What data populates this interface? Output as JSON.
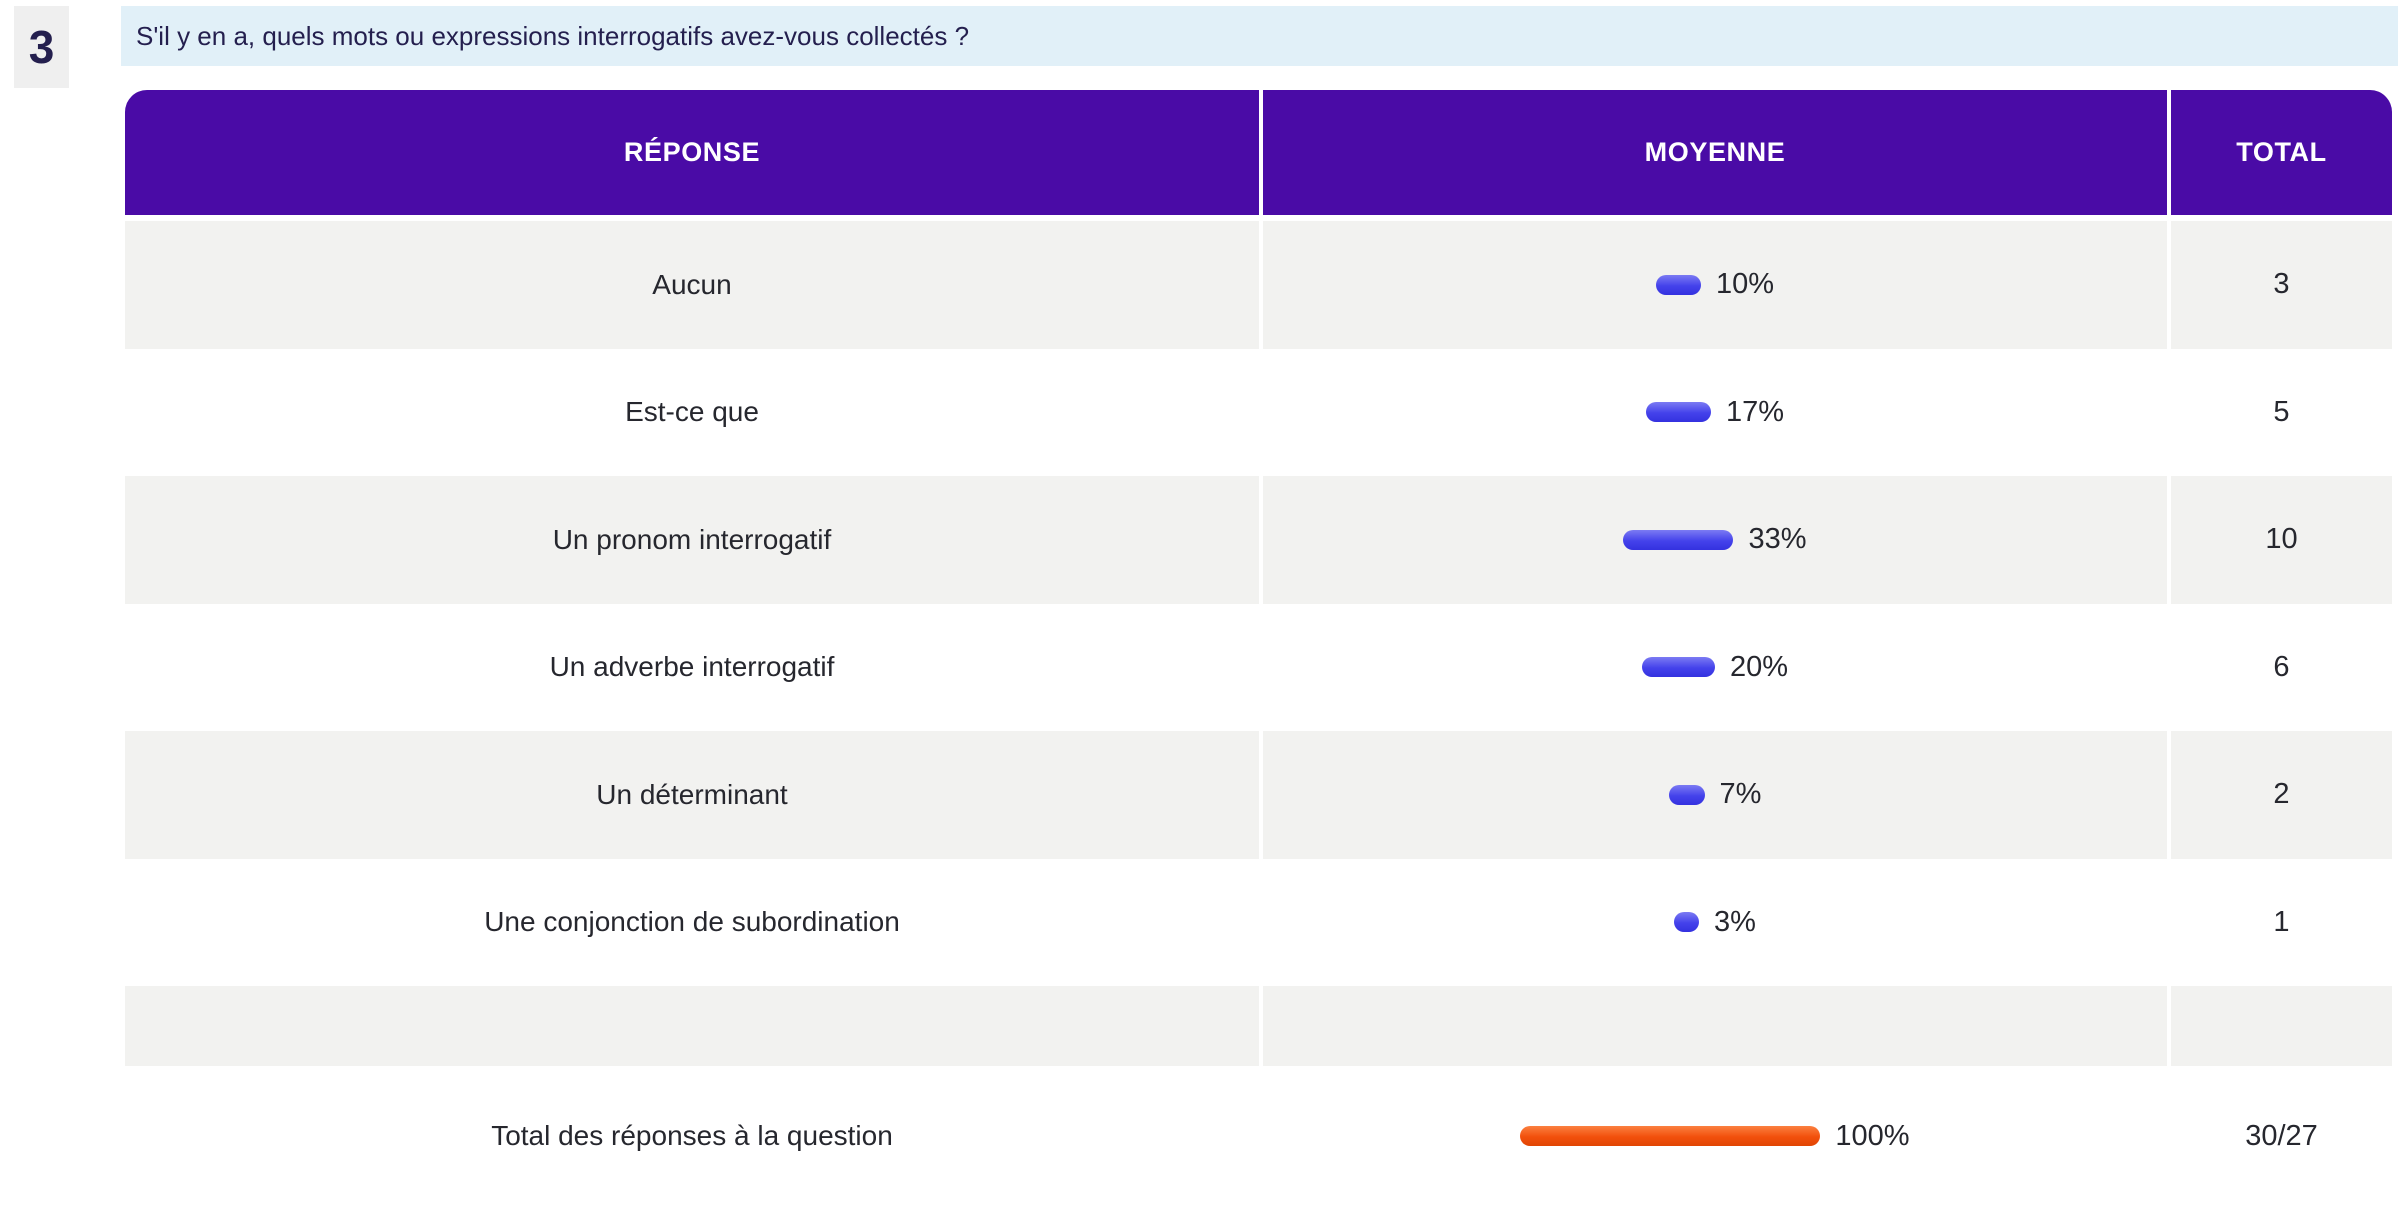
{
  "question": {
    "number": "3",
    "text": "S'il y en a, quels mots ou expressions interrogatifs avez-vous collectés ?"
  },
  "table": {
    "headers": [
      "RÉPONSE",
      "MOYENNE",
      "TOTAL"
    ],
    "rows": [
      {
        "label": "Aucun",
        "percent": 10,
        "percent_label": "10%",
        "total": "3"
      },
      {
        "label": "Est-ce que",
        "percent": 17,
        "percent_label": "17%",
        "total": "5"
      },
      {
        "label": "Un pronom interrogatif",
        "percent": 33,
        "percent_label": "33%",
        "total": "10"
      },
      {
        "label": "Un adverbe interrogatif",
        "percent": 20,
        "percent_label": "20%",
        "total": "6"
      },
      {
        "label": "Un déterminant",
        "percent": 7,
        "percent_label": "7%",
        "total": "2"
      },
      {
        "label": "Une conjonction de subordination",
        "percent": 3,
        "percent_label": "3%",
        "total": "1"
      },
      {
        "label": "",
        "percent": null,
        "percent_label": "",
        "total": "",
        "spacer": true
      },
      {
        "label": "Total des réponses à la question",
        "percent": 100,
        "percent_label": "100%",
        "total": "30/27",
        "is_total": true
      }
    ]
  },
  "colors": {
    "header_bg": "#4A0BA6",
    "banner_bg": "#E1F0F8",
    "badge_bg": "#EFEFEF",
    "row_alt_bg": "#F2F2F0",
    "dark_text": "#241F4E",
    "body_text": "#26272E",
    "bar_blue": "#4442EB",
    "bar_blue_light": "#7C7BF3",
    "bar_blue_dark": "#3431DF",
    "bar_orange": "#F2500C",
    "bar_orange_light": "#FB8040",
    "bar_orange_dark": "#E04504"
  },
  "chart_data": {
    "type": "bar",
    "title": "S'il y en a, quels mots ou expressions interrogatifs avez-vous collectés ?",
    "question_number": 3,
    "categories": [
      "Aucun",
      "Est-ce que",
      "Un pronom interrogatif",
      "Un adverbe interrogatif",
      "Un déterminant",
      "Une conjonction de subordination"
    ],
    "series": [
      {
        "name": "MOYENNE",
        "unit": "%",
        "values": [
          10,
          17,
          33,
          20,
          7,
          3
        ]
      },
      {
        "name": "TOTAL",
        "unit": "count",
        "values": [
          3,
          5,
          10,
          6,
          2,
          1
        ]
      }
    ],
    "total_row": {
      "label": "Total des réponses à la question",
      "moyenne": 100,
      "moyenne_label": "100%",
      "total": "30/27"
    },
    "orientation": "horizontal",
    "grid": false,
    "legend": false
  }
}
